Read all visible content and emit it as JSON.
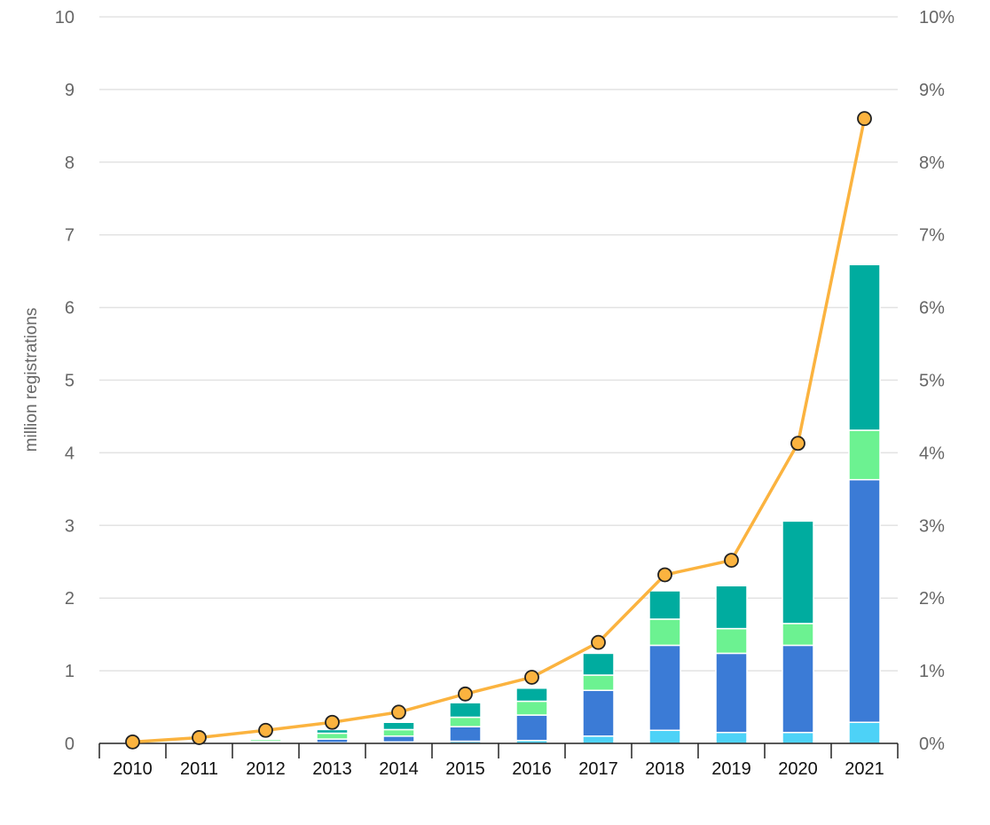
{
  "chart_data": {
    "type": "bar",
    "subtype": "stacked-bar-with-line-secondary-axis",
    "categories": [
      "2010",
      "2011",
      "2012",
      "2013",
      "2014",
      "2015",
      "2016",
      "2017",
      "2018",
      "2019",
      "2020",
      "2021"
    ],
    "stack_series": [
      {
        "color": "#4dd2f7",
        "values": [
          0,
          0,
          0.005,
          0.01,
          0.02,
          0.03,
          0.04,
          0.1,
          0.18,
          0.15,
          0.15,
          0.29
        ]
      },
      {
        "color": "#3b7bd6",
        "values": [
          0.002,
          0.005,
          0.02,
          0.05,
          0.08,
          0.2,
          0.35,
          0.63,
          1.17,
          1.09,
          1.2,
          3.34
        ]
      },
      {
        "color": "#6cf291",
        "values": [
          0.002,
          0.005,
          0.03,
          0.08,
          0.09,
          0.13,
          0.19,
          0.21,
          0.36,
          0.34,
          0.3,
          0.68
        ]
      },
      {
        "color": "#00ac9f",
        "values": [
          0.001,
          0.005,
          0.015,
          0.05,
          0.1,
          0.2,
          0.18,
          0.3,
          0.39,
          0.59,
          1.41,
          2.28
        ]
      }
    ],
    "line_series": {
      "color": "#fbb33f",
      "axis": "right",
      "values": [
        0.02,
        0.08,
        0.18,
        0.29,
        0.43,
        0.68,
        0.91,
        1.39,
        2.32,
        2.52,
        4.13,
        8.6
      ]
    },
    "ylabel": "million registrations",
    "ylim": [
      0,
      10
    ],
    "y_ticks": [
      "0",
      "1",
      "2",
      "3",
      "4",
      "5",
      "6",
      "7",
      "8",
      "9",
      "10"
    ],
    "y2lim": [
      0,
      10
    ],
    "y2_ticks": [
      "0%",
      "1%",
      "2%",
      "3%",
      "4%",
      "5%",
      "6%",
      "7%",
      "8%",
      "9%",
      "10%"
    ],
    "grid": true,
    "legend": "none"
  }
}
